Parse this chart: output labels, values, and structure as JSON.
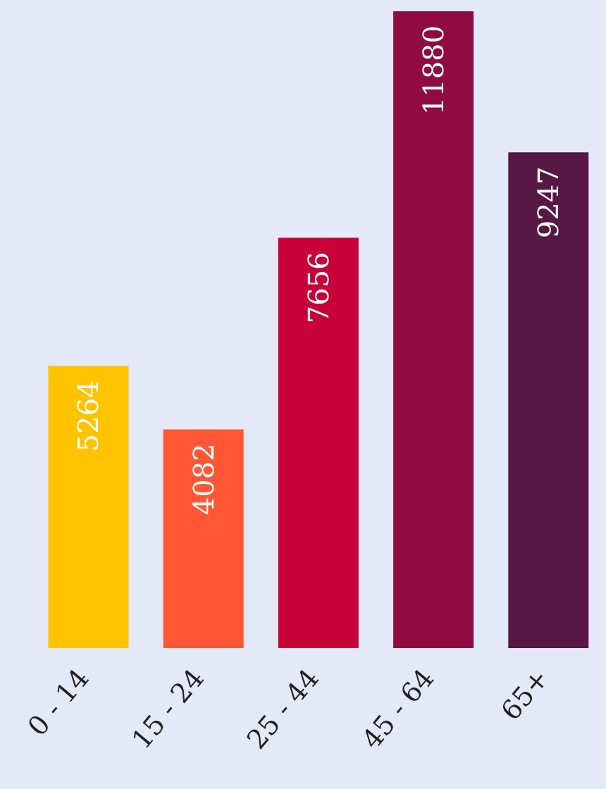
{
  "chart_data": {
    "type": "bar",
    "categories": [
      "0 - 14",
      "15 - 24",
      "25 - 44",
      "45 - 64",
      "65+"
    ],
    "values": [
      5264,
      4082,
      7656,
      11880,
      9247
    ],
    "colors": [
      "#ffc300",
      "#ff5733",
      "#c70039",
      "#900c3f",
      "#581845"
    ],
    "data_labels": true
  }
}
